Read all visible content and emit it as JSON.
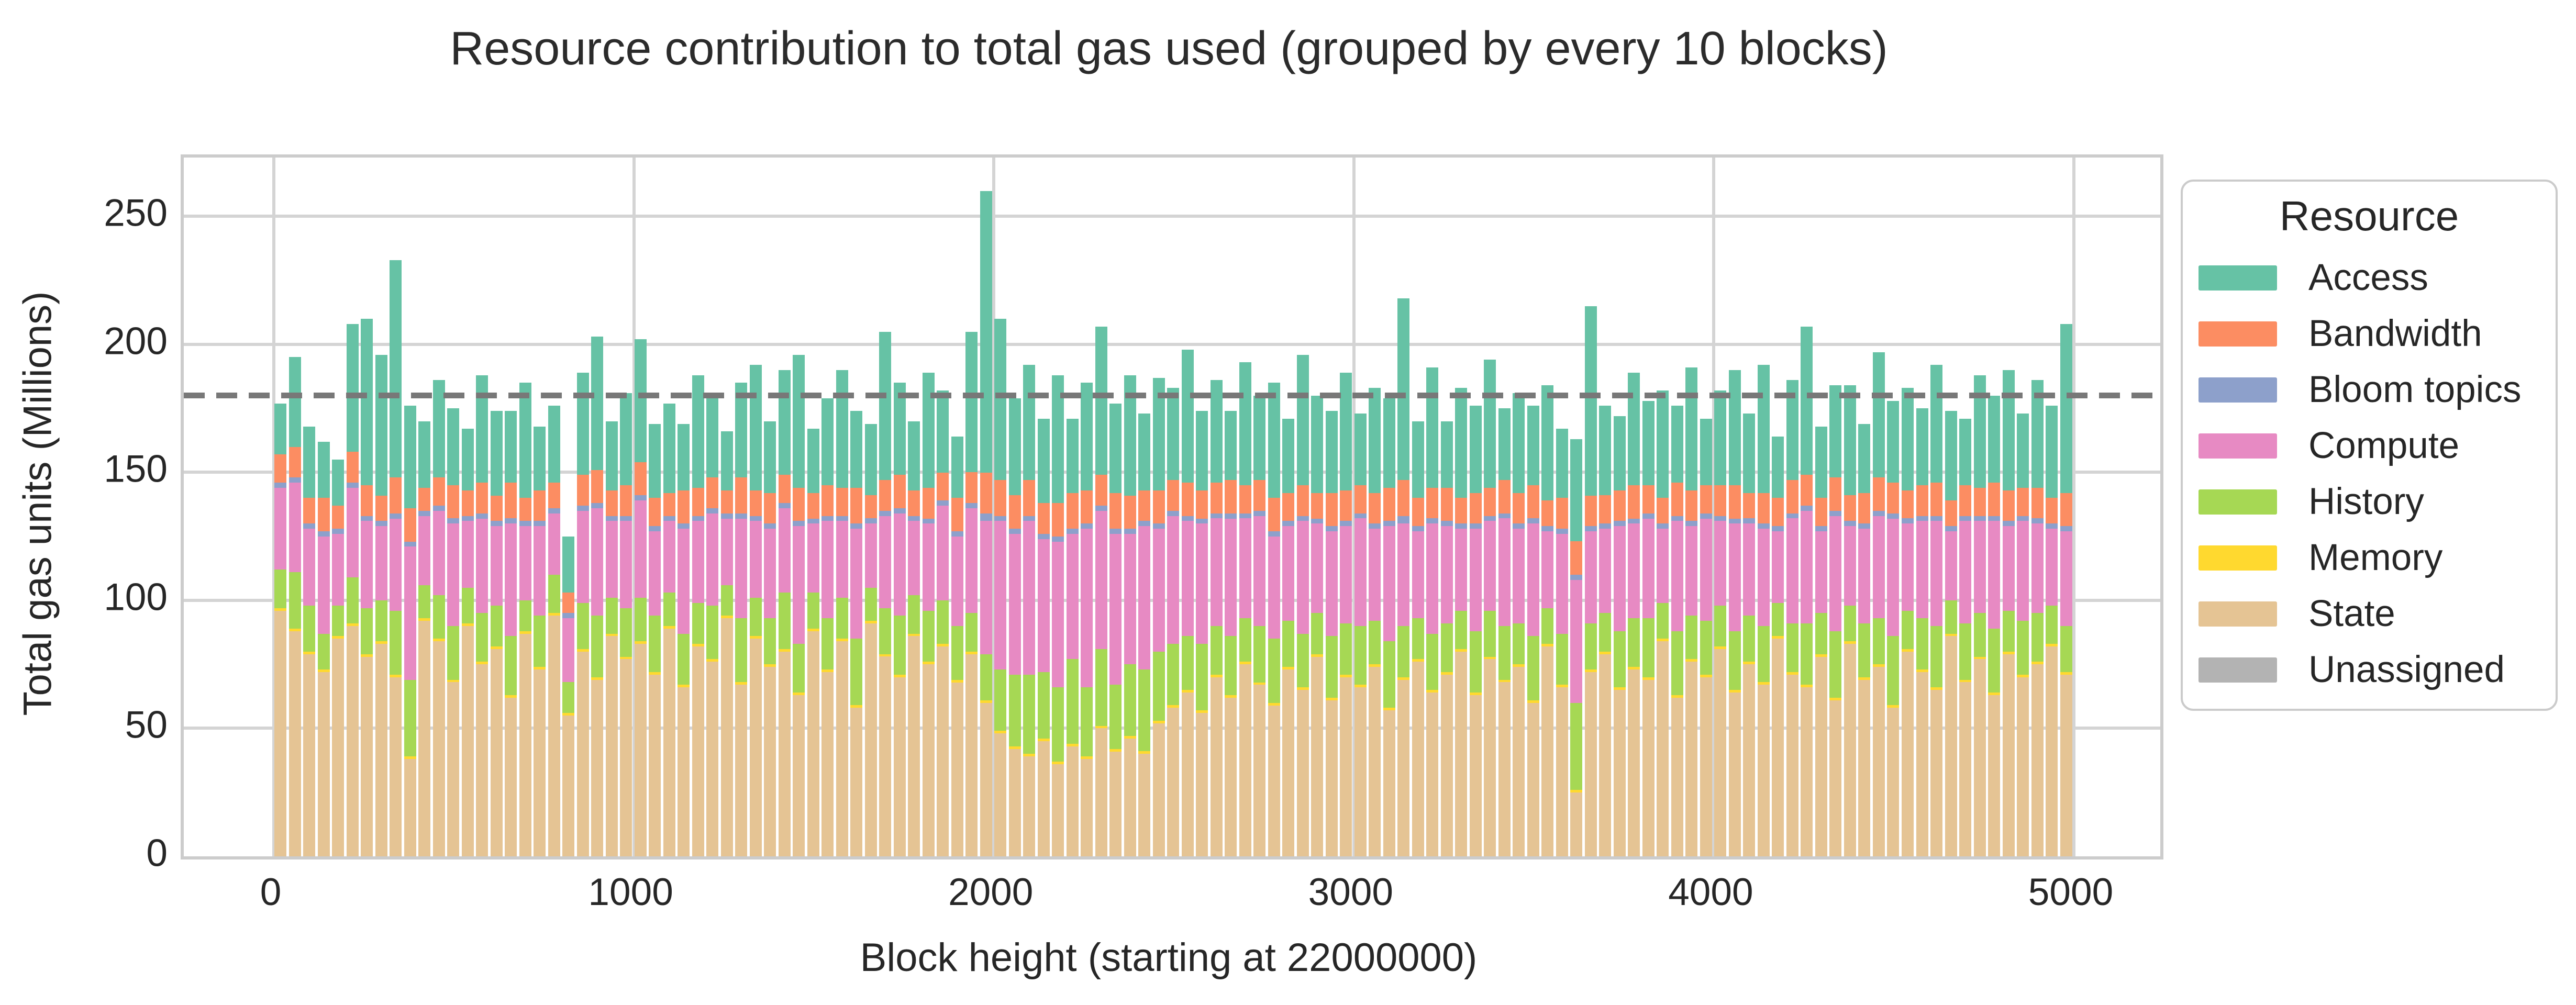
{
  "title": "Resource contribution to total gas used (grouped by every 10 blocks)",
  "colors": {
    "access": "#66c2a5",
    "bandwidth": "#fc8d62",
    "bloom_topics": "#8da0cb",
    "compute": "#e78ac3",
    "history": "#a6d854",
    "memory": "#ffd92f",
    "state": "#e5c494",
    "unassigned": "#b3b3b3",
    "grid": "#d4d4d4",
    "reference_line": "#787878",
    "text": "#262626"
  },
  "legend": {
    "title": "Resource",
    "items": [
      {
        "label": "Access",
        "color": "#66c2a5"
      },
      {
        "label": "Bandwidth",
        "color": "#fc8d62"
      },
      {
        "label": "Bloom topics",
        "color": "#8da0cb"
      },
      {
        "label": "Compute",
        "color": "#e78ac3"
      },
      {
        "label": "History",
        "color": "#a6d854"
      },
      {
        "label": "Memory",
        "color": "#ffd92f"
      },
      {
        "label": "State",
        "color": "#e5c494"
      },
      {
        "label": "Unassigned",
        "color": "#b3b3b3"
      }
    ]
  },
  "chart_data": {
    "type": "bar",
    "stacked": true,
    "title": "Resource contribution to total gas used (grouped by every 10 blocks)",
    "xlabel": "Block height (starting at 22000000)",
    "ylabel": "Total gas units (Millions)",
    "legend_title": "Resource",
    "legend_position": "upper right, outside axes",
    "grid": true,
    "x_ticks": [
      0,
      1000,
      2000,
      3000,
      4000,
      5000
    ],
    "y_ticks": [
      0,
      50,
      100,
      150,
      200,
      250
    ],
    "xlim": [
      -250,
      5250
    ],
    "ylim": [
      0,
      273
    ],
    "reference_line": {
      "orientation": "horizontal",
      "value": 180,
      "style": "dashed",
      "color": "#787878"
    },
    "x_start": 0,
    "x_step_per_bar": 40,
    "n_bars": 125,
    "stack_order_bottom_to_top": [
      "State",
      "Memory",
      "History",
      "Compute",
      "Bloom topics",
      "Bandwidth",
      "Access"
    ],
    "series": [
      {
        "name": "State",
        "color": "#e5c494",
        "values": [
          96,
          88,
          79,
          72,
          85,
          90,
          78,
          83,
          70,
          38,
          92,
          84,
          68,
          90,
          75,
          81,
          62,
          87,
          73,
          94,
          55,
          80,
          69,
          86,
          77,
          83,
          71,
          89,
          66,
          82,
          76,
          93,
          67,
          85,
          74,
          80,
          63,
          88,
          72,
          84,
          58,
          91,
          78,
          70,
          86,
          75,
          82,
          68,
          79,
          60,
          48,
          42,
          39,
          45,
          36,
          43,
          38,
          50,
          41,
          46,
          40,
          52,
          58,
          64,
          56,
          70,
          62,
          75,
          67,
          59,
          73,
          65,
          78,
          61,
          70,
          66,
          74,
          57,
          69,
          76,
          64,
          71,
          80,
          63,
          77,
          68,
          74,
          60,
          82,
          66,
          25,
          72,
          79,
          65,
          73,
          69,
          84,
          62,
          76,
          70,
          81,
          64,
          75,
          67,
          85,
          71,
          66,
          78,
          61,
          83,
          69,
          74,
          58,
          80,
          72,
          65,
          86,
          68,
          77,
          63,
          79,
          70,
          75,
          82,
          71
        ]
      },
      {
        "name": "Memory",
        "color": "#ffd92f",
        "values": [
          1,
          1,
          1,
          1,
          1,
          1,
          1,
          1,
          1,
          1,
          1,
          1,
          1,
          1,
          1,
          1,
          1,
          1,
          1,
          1,
          1,
          1,
          1,
          1,
          1,
          1,
          1,
          1,
          1,
          1,
          1,
          1,
          1,
          1,
          1,
          1,
          1,
          1,
          1,
          1,
          1,
          1,
          1,
          1,
          1,
          1,
          1,
          1,
          1,
          1,
          1,
          1,
          1,
          1,
          1,
          1,
          1,
          1,
          1,
          1,
          1,
          1,
          1,
          1,
          1,
          1,
          1,
          1,
          1,
          1,
          1,
          1,
          1,
          1,
          1,
          1,
          1,
          1,
          1,
          1,
          1,
          1,
          1,
          1,
          1,
          1,
          1,
          1,
          1,
          1,
          1,
          1,
          1,
          1,
          1,
          1,
          1,
          1,
          1,
          1,
          1,
          1,
          1,
          1,
          1,
          1,
          1,
          1,
          1,
          1,
          1,
          1,
          1,
          1,
          1,
          1,
          1,
          1,
          1,
          1,
          1,
          1,
          1,
          1,
          1
        ]
      },
      {
        "name": "History",
        "color": "#a6d854",
        "values": [
          15,
          22,
          18,
          14,
          12,
          18,
          18,
          16,
          25,
          30,
          13,
          17,
          21,
          14,
          19,
          16,
          23,
          12,
          20,
          15,
          12,
          18,
          24,
          14,
          19,
          17,
          22,
          13,
          20,
          16,
          21,
          12,
          25,
          15,
          18,
          22,
          19,
          14,
          20,
          16,
          26,
          13,
          18,
          23,
          15,
          20,
          17,
          21,
          15,
          18,
          24,
          28,
          31,
          26,
          29,
          33,
          27,
          30,
          25,
          28,
          32,
          27,
          24,
          21,
          26,
          19,
          23,
          17,
          22,
          25,
          18,
          21,
          16,
          24,
          20,
          23,
          17,
          26,
          20,
          16,
          22,
          19,
          15,
          24,
          18,
          21,
          16,
          25,
          14,
          20,
          34,
          18,
          15,
          22,
          19,
          23,
          14,
          25,
          17,
          21,
          16,
          23,
          18,
          22,
          13,
          19,
          24,
          16,
          26,
          14,
          21,
          18,
          27,
          15,
          20,
          24,
          13,
          22,
          17,
          25,
          16,
          21,
          19,
          15,
          18
        ]
      },
      {
        "name": "Compute",
        "color": "#e78ac3",
        "values": [
          32,
          35,
          30,
          38,
          28,
          35,
          34,
          29,
          36,
          52,
          27,
          33,
          40,
          26,
          37,
          31,
          44,
          29,
          35,
          24,
          25,
          36,
          42,
          30,
          34,
          38,
          33,
          28,
          41,
          32,
          36,
          26,
          39,
          30,
          35,
          33,
          46,
          27,
          38,
          30,
          43,
          25,
          36,
          40,
          29,
          34,
          37,
          35,
          41,
          52,
          58,
          55,
          60,
          52,
          57,
          49,
          62,
          54,
          59,
          51,
          56,
          48,
          50,
          45,
          47,
          42,
          46,
          39,
          43,
          40,
          37,
          44,
          35,
          41,
          38,
          42,
          36,
          45,
          40,
          34,
          43,
          38,
          32,
          40,
          35,
          42,
          37,
          44,
          30,
          39,
          48,
          36,
          33,
          41,
          37,
          39,
          29,
          43,
          35,
          40,
          33,
          42,
          36,
          38,
          28,
          41,
          44,
          32,
          45,
          31,
          37,
          40,
          46,
          34,
          38,
          41,
          27,
          40,
          36,
          42,
          33,
          39,
          35,
          30,
          37
        ]
      },
      {
        "name": "Bloom topics",
        "color": "#8da0cb",
        "values": [
          2,
          2,
          2,
          2,
          2,
          2,
          2,
          2,
          2,
          2,
          2,
          2,
          2,
          2,
          2,
          2,
          2,
          2,
          2,
          2,
          2,
          2,
          2,
          2,
          2,
          2,
          2,
          2,
          2,
          2,
          2,
          2,
          2,
          2,
          2,
          2,
          2,
          2,
          2,
          2,
          2,
          2,
          2,
          2,
          2,
          2,
          2,
          2,
          2,
          3,
          2,
          2,
          2,
          2,
          2,
          2,
          2,
          2,
          2,
          2,
          2,
          2,
          2,
          2,
          2,
          2,
          2,
          2,
          2,
          2,
          2,
          2,
          2,
          2,
          2,
          2,
          2,
          2,
          3,
          2,
          2,
          2,
          2,
          2,
          2,
          2,
          2,
          2,
          2,
          2,
          2,
          2,
          2,
          2,
          2,
          2,
          2,
          2,
          2,
          2,
          2,
          2,
          2,
          2,
          2,
          2,
          2,
          2,
          2,
          2,
          2,
          2,
          2,
          2,
          2,
          2,
          2,
          2,
          2,
          2,
          2,
          2,
          2,
          2,
          2
        ]
      },
      {
        "name": "Bandwidth",
        "color": "#fc8d62",
        "values": [
          11,
          12,
          10,
          13,
          9,
          12,
          12,
          10,
          14,
          13,
          9,
          11,
          13,
          10,
          12,
          10,
          14,
          9,
          12,
          10,
          8,
          12,
          13,
          10,
          12,
          13,
          11,
          9,
          13,
          11,
          12,
          9,
          14,
          10,
          12,
          11,
          13,
          10,
          12,
          11,
          14,
          9,
          12,
          13,
          10,
          12,
          11,
          13,
          12,
          16,
          14,
          13,
          14,
          12,
          13,
          14,
          13,
          12,
          14,
          13,
          12,
          13,
          12,
          13,
          11,
          12,
          13,
          11,
          12,
          13,
          11,
          12,
          10,
          13,
          12,
          11,
          12,
          13,
          14,
          11,
          12,
          13,
          10,
          12,
          11,
          13,
          12,
          13,
          10,
          12,
          13,
          12,
          11,
          12,
          13,
          11,
          10,
          13,
          12,
          11,
          12,
          13,
          10,
          12,
          11,
          13,
          12,
          11,
          13,
          10,
          12,
          13,
          12,
          11,
          12,
          13,
          10,
          12,
          11,
          13,
          12,
          11,
          12,
          10,
          13
        ]
      },
      {
        "name": "Access",
        "color": "#66c2a5",
        "values": [
          20,
          35,
          28,
          22,
          18,
          50,
          65,
          55,
          85,
          40,
          26,
          38,
          30,
          24,
          42,
          33,
          28,
          45,
          25,
          30,
          22,
          40,
          52,
          27,
          36,
          48,
          29,
          35,
          26,
          44,
          31,
          23,
          37,
          49,
          28,
          41,
          52,
          25,
          34,
          46,
          30,
          28,
          58,
          36,
          27,
          45,
          32,
          24,
          55,
          110,
          63,
          38,
          45,
          33,
          50,
          29,
          42,
          58,
          35,
          47,
          30,
          44,
          36,
          52,
          31,
          40,
          27,
          48,
          33,
          45,
          29,
          51,
          38,
          32,
          46,
          28,
          41,
          35,
          71,
          30,
          47,
          26,
          43,
          34,
          50,
          28,
          39,
          31,
          45,
          27,
          40,
          74,
          35,
          29,
          44,
          33,
          42,
          30,
          48,
          26,
          37,
          45,
          31,
          50,
          24,
          39,
          58,
          28,
          36,
          43,
          27,
          49,
          32,
          40,
          30,
          46,
          35,
          26,
          44,
          34,
          47,
          29,
          42,
          36,
          66
        ]
      },
      {
        "name": "Unassigned",
        "color": "#b3b3b3",
        "values": []
      }
    ]
  }
}
